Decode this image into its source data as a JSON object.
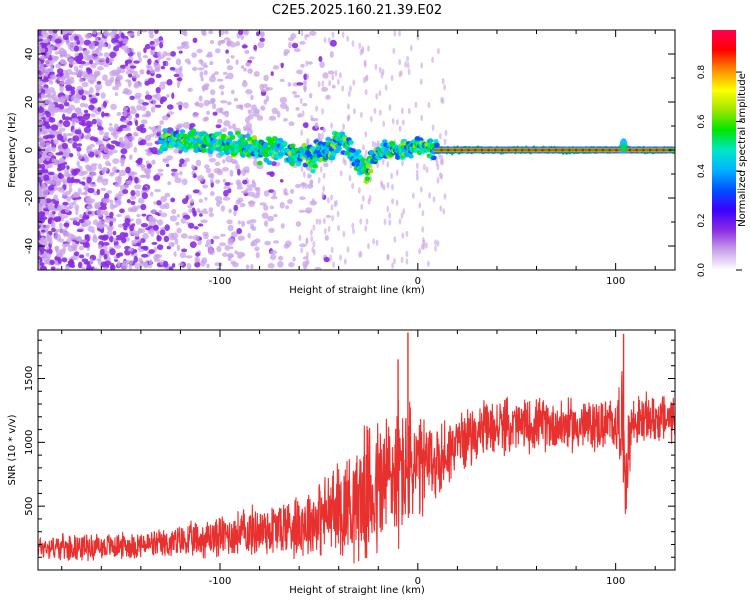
{
  "title": "C2E5.2025.160.21.39.E02",
  "chart_data": [
    {
      "type": "heatmap",
      "xlabel": "Height of straight line (km)",
      "ylabel": "Frequency (Hz)",
      "xlim": [
        -192,
        130
      ],
      "ylim": [
        -50,
        50
      ],
      "x_ticks": [
        -100,
        0,
        100
      ],
      "y_ticks": [
        -40,
        -20,
        0,
        20,
        40
      ],
      "colorbar": {
        "label": "Normalized spectral amplitude",
        "range": [
          0,
          0.97
        ],
        "ticks": [
          0.0,
          0.2,
          0.4,
          0.6,
          0.8
        ],
        "colors": [
          "#ffffff",
          "#c8a2e8",
          "#8a2be2",
          "#3c00ff",
          "#0050ff",
          "#00b4ff",
          "#00e6c8",
          "#00e600",
          "#a0e600",
          "#ffff00",
          "#ff8c00",
          "#ff0000",
          "#ff0050"
        ]
      },
      "ridge": {
        "x": [
          -130,
          -110,
          -90,
          -70,
          -55,
          -45,
          -38,
          -32,
          -26,
          -20,
          -15,
          -10,
          -5,
          0,
          5,
          10,
          20,
          40,
          60,
          80,
          100,
          104,
          108,
          130
        ],
        "freq": [
          4,
          3,
          2,
          0,
          -3,
          0,
          5,
          -4,
          -8,
          -2,
          0,
          0,
          1,
          2,
          1,
          0,
          0,
          0,
          0,
          0,
          0,
          1,
          0,
          0
        ]
      }
    },
    {
      "type": "line",
      "xlabel": "Height of straight line (km)",
      "ylabel": "SNR (10 * v/v)",
      "xlim": [
        -192,
        130
      ],
      "ylim": [
        0,
        1880
      ],
      "x_ticks": [
        -100,
        0,
        100
      ],
      "y_ticks": [
        500,
        1000,
        1500
      ],
      "color": "#e8302e",
      "series": [
        {
          "x": [
            -192,
            -170,
            -150,
            -130,
            -110,
            -90,
            -70,
            -50,
            -40,
            -30,
            -20,
            -15,
            -10,
            -5,
            0,
            10,
            20,
            30,
            40,
            60,
            80,
            100,
            103,
            105,
            108,
            115,
            130
          ],
          "mean": [
            180,
            180,
            190,
            200,
            240,
            290,
            330,
            400,
            470,
            560,
            640,
            740,
            760,
            810,
            780,
            850,
            1000,
            1080,
            1120,
            1140,
            1130,
            1140,
            1200,
            750,
            1150,
            1180,
            1190
          ],
          "band": [
            80,
            90,
            90,
            100,
            130,
            160,
            200,
            260,
            330,
            420,
            520,
            500,
            520,
            470,
            380,
            280,
            200,
            190,
            190,
            180,
            180,
            180,
            350,
            350,
            180,
            170,
            170
          ],
          "peaks": [
            [
              -5,
              1860
            ],
            [
              -10,
              1650
            ],
            [
              104,
              1850
            ]
          ]
        }
      ]
    }
  ]
}
